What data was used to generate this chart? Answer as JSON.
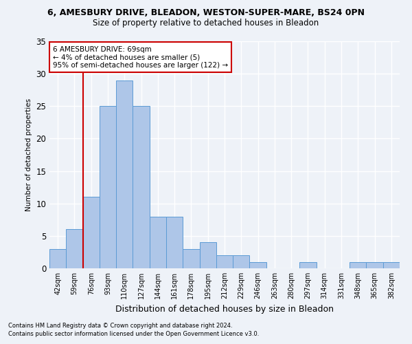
{
  "title1": "6, AMESBURY DRIVE, BLEADON, WESTON-SUPER-MARE, BS24 0PN",
  "title2": "Size of property relative to detached houses in Bleadon",
  "xlabel": "Distribution of detached houses by size in Bleadon",
  "ylabel": "Number of detached properties",
  "categories": [
    "42sqm",
    "59sqm",
    "76sqm",
    "93sqm",
    "110sqm",
    "127sqm",
    "144sqm",
    "161sqm",
    "178sqm",
    "195sqm",
    "212sqm",
    "229sqm",
    "246sqm",
    "263sqm",
    "280sqm",
    "297sqm",
    "314sqm",
    "331sqm",
    "348sqm",
    "365sqm",
    "382sqm"
  ],
  "values": [
    3,
    6,
    11,
    25,
    29,
    25,
    8,
    8,
    3,
    4,
    2,
    2,
    1,
    0,
    0,
    1,
    0,
    0,
    1,
    1,
    1
  ],
  "bar_color": "#aec6e8",
  "bar_edge_color": "#5b9bd5",
  "ylim": [
    0,
    35
  ],
  "yticks": [
    0,
    5,
    10,
    15,
    20,
    25,
    30,
    35
  ],
  "vline_x": 1.5,
  "annotation_line1": "6 AMESBURY DRIVE: 69sqm",
  "annotation_line2": "← 4% of detached houses are smaller (5)",
  "annotation_line3": "95% of semi-detached houses are larger (122) →",
  "annotation_box_color": "#ffffff",
  "annotation_box_edge": "#cc0000",
  "footnote1": "Contains HM Land Registry data © Crown copyright and database right 2024.",
  "footnote2": "Contains public sector information licensed under the Open Government Licence v3.0.",
  "vline_color": "#cc0000",
  "bg_color": "#eef2f8",
  "grid_color": "#ffffff"
}
